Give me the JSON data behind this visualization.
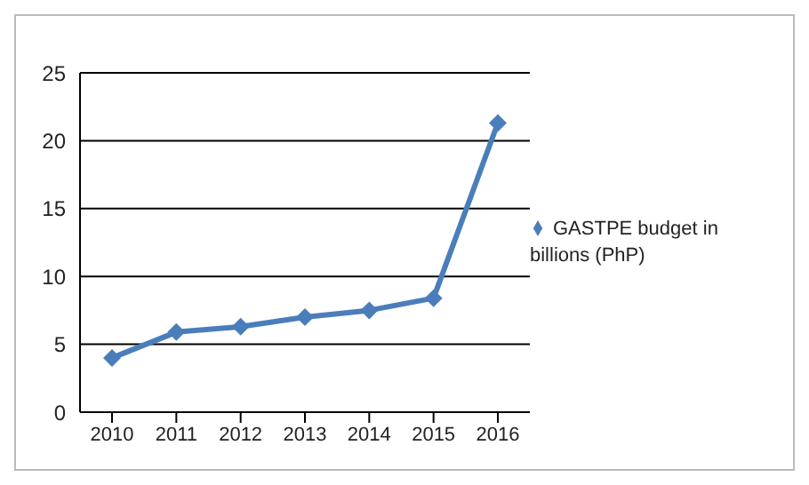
{
  "chart_data": {
    "type": "line",
    "categories": [
      "2010",
      "2011",
      "2012",
      "2013",
      "2014",
      "2015",
      "2016"
    ],
    "series": [
      {
        "name": "GASTPE budget in billions (PhP)",
        "color": "#4a7ebb",
        "values": [
          4.0,
          5.9,
          6.3,
          7.0,
          7.5,
          8.4,
          21.3
        ]
      }
    ],
    "ylim": [
      0,
      25
    ],
    "yticks": [
      0,
      5,
      10,
      15,
      20,
      25
    ],
    "grid": "y",
    "legend": "right",
    "marker": "diamond",
    "line_style": "solid"
  }
}
